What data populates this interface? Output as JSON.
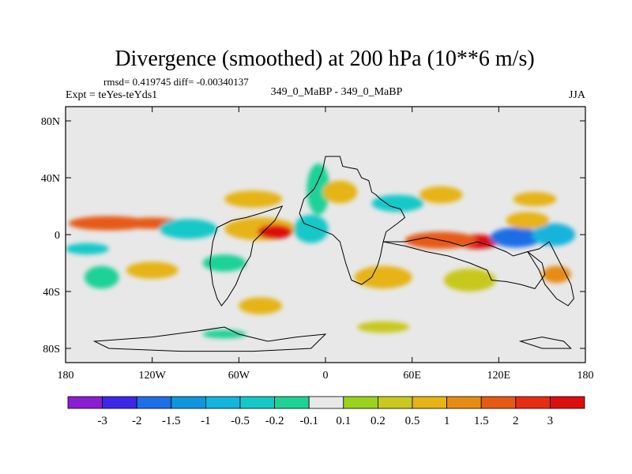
{
  "chart_data": {
    "type": "heatmap",
    "title": "Divergence (smoothed) at 200 hPa (10**6 m/s)",
    "stats_line": "rmsd= 0.419745 diff= -0.00340137",
    "experiment": "Expt = teYes-teYds1",
    "case": "349_0_MaBP - 349_0_MaBP",
    "season": "JJA",
    "x_ticks": [
      {
        "value": -180,
        "label": "180"
      },
      {
        "value": -120,
        "label": "120W"
      },
      {
        "value": -60,
        "label": "60W"
      },
      {
        "value": 0,
        "label": "0"
      },
      {
        "value": 60,
        "label": "60E"
      },
      {
        "value": 120,
        "label": "120E"
      },
      {
        "value": 180,
        "label": "180"
      }
    ],
    "y_ticks": [
      {
        "value": 80,
        "label": "80N"
      },
      {
        "value": 40,
        "label": "40N"
      },
      {
        "value": 0,
        "label": "0"
      },
      {
        "value": -40,
        "label": "40S"
      },
      {
        "value": -80,
        "label": "80S"
      }
    ],
    "xlim": [
      -180,
      180
    ],
    "ylim": [
      -90,
      90
    ],
    "colorbar": {
      "levels": [
        "-3",
        "-2",
        "-1.5",
        "-1",
        "-0.5",
        "-0.2",
        "-0.1",
        "0.1",
        "0.2",
        "0.5",
        "1",
        "1.5",
        "2",
        "3"
      ],
      "colors": [
        "#8c1ed2",
        "#3c28e6",
        "#1e6ee6",
        "#0f96dc",
        "#14b4dc",
        "#14c8c8",
        "#1ed296",
        "#e8e8e8",
        "#9bd21e",
        "#c8c81e",
        "#e6b414",
        "#e68c14",
        "#e65a14",
        "#e62d14",
        "#dc0f0f"
      ]
    },
    "field_features": [
      {
        "lon": -150,
        "lat": 8,
        "value": 1.5,
        "rx": 28,
        "ry": 5
      },
      {
        "lon": -120,
        "lat": 8,
        "value": 1.5,
        "rx": 22,
        "ry": 4
      },
      {
        "lon": -95,
        "lat": 4,
        "value": -0.5,
        "rx": 20,
        "ry": 7
      },
      {
        "lon": -45,
        "lat": 4,
        "value": 0.5,
        "rx": 25,
        "ry": 8
      },
      {
        "lon": -35,
        "lat": 2,
        "value": 3,
        "rx": 12,
        "ry": 5
      },
      {
        "lon": -10,
        "lat": 4,
        "value": -0.5,
        "rx": 12,
        "ry": 10
      },
      {
        "lon": -5,
        "lat": 32,
        "value": -0.2,
        "rx": 8,
        "ry": 18
      },
      {
        "lon": 10,
        "lat": 30,
        "value": 0.5,
        "rx": 12,
        "ry": 8
      },
      {
        "lon": -50,
        "lat": 25,
        "value": 0.5,
        "rx": 20,
        "ry": 6
      },
      {
        "lon": 50,
        "lat": 22,
        "value": -0.5,
        "rx": 18,
        "ry": 6
      },
      {
        "lon": 80,
        "lat": 28,
        "value": 0.5,
        "rx": 15,
        "ry": 6
      },
      {
        "lon": 105,
        "lat": -5,
        "value": 3,
        "rx": 15,
        "ry": 5
      },
      {
        "lon": 80,
        "lat": -4,
        "value": 1.5,
        "rx": 25,
        "ry": 6
      },
      {
        "lon": 132,
        "lat": -2,
        "value": -2,
        "rx": 18,
        "ry": 7
      },
      {
        "lon": 158,
        "lat": 0,
        "value": -1,
        "rx": 15,
        "ry": 8
      },
      {
        "lon": -165,
        "lat": -10,
        "value": -0.5,
        "rx": 15,
        "ry": 4
      },
      {
        "lon": -155,
        "lat": -30,
        "value": -0.2,
        "rx": 12,
        "ry": 8
      },
      {
        "lon": -120,
        "lat": -25,
        "value": 0.5,
        "rx": 18,
        "ry": 6
      },
      {
        "lon": 40,
        "lat": -30,
        "value": 0.5,
        "rx": 20,
        "ry": 8
      },
      {
        "lon": 100,
        "lat": -32,
        "value": 0.2,
        "rx": 18,
        "ry": 8
      },
      {
        "lon": 160,
        "lat": -28,
        "value": 1,
        "rx": 10,
        "ry": 6
      },
      {
        "lon": -45,
        "lat": -50,
        "value": 0.5,
        "rx": 15,
        "ry": 6
      },
      {
        "lon": 40,
        "lat": -65,
        "value": 0.2,
        "rx": 18,
        "ry": 4
      },
      {
        "lon": -70,
        "lat": -70,
        "value": -0.2,
        "rx": 15,
        "ry": 3
      },
      {
        "lon": 140,
        "lat": 10,
        "value": 0.5,
        "rx": 15,
        "ry": 6
      },
      {
        "lon": 145,
        "lat": 25,
        "value": 0.5,
        "rx": 15,
        "ry": 5
      },
      {
        "lon": -70,
        "lat": -20,
        "value": -0.2,
        "rx": 15,
        "ry": 6
      }
    ]
  }
}
